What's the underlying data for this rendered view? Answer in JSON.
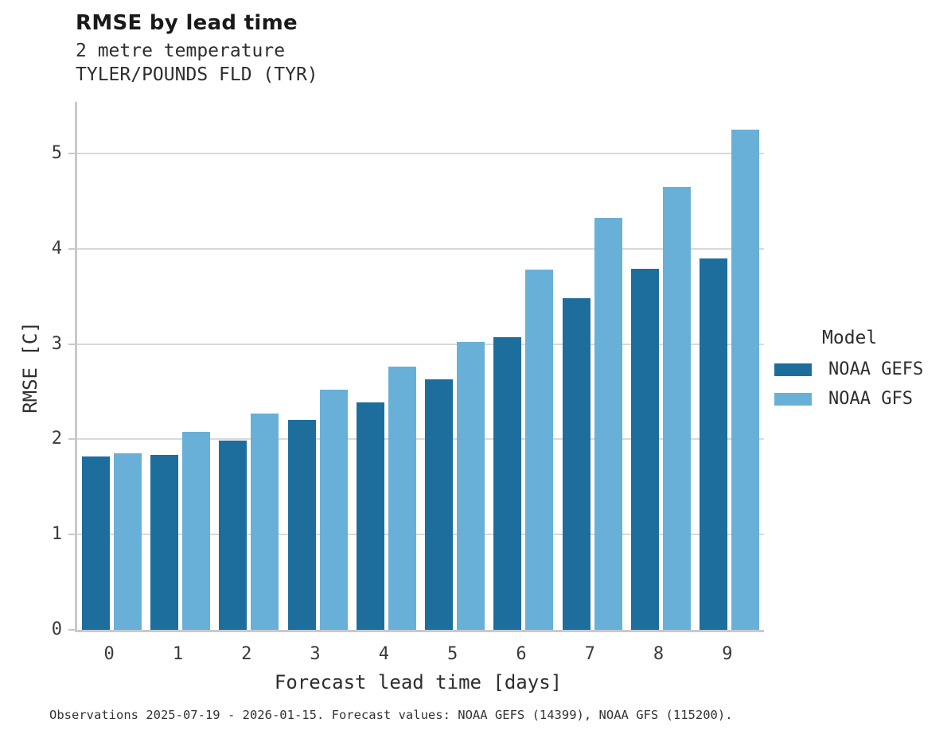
{
  "header": {
    "title": "RMSE by lead time",
    "subtitle_line1": "2 metre temperature",
    "subtitle_line2": "TYLER/POUNDS FLD (TYR)"
  },
  "chart_data": {
    "type": "bar",
    "title": "RMSE by lead time",
    "subtitle": [
      "2 metre temperature",
      "TYLER/POUNDS FLD (TYR)"
    ],
    "categories": [
      "0",
      "1",
      "2",
      "3",
      "4",
      "5",
      "6",
      "7",
      "8",
      "9"
    ],
    "series": [
      {
        "name": "NOAA GEFS",
        "color": "#1d6e9d",
        "values": [
          1.82,
          1.84,
          1.99,
          2.2,
          2.39,
          2.63,
          3.07,
          3.48,
          3.79,
          3.9
        ]
      },
      {
        "name": "NOAA GFS",
        "color": "#69b0d8",
        "values": [
          1.85,
          2.08,
          2.27,
          2.52,
          2.76,
          3.02,
          3.78,
          4.32,
          4.65,
          5.25
        ]
      }
    ],
    "xlabel": "Forecast lead time [days]",
    "ylabel": "RMSE [C]",
    "ylim": [
      0,
      5.55
    ],
    "yticks": [
      0,
      1,
      2,
      3,
      4,
      5
    ],
    "grid": "horizontal-only",
    "gridline_color": "#d9d9d9",
    "axis_spine_color": "#c9c9c9",
    "legend_title": "Model",
    "legend_position": "right-center"
  },
  "legend": {
    "title": "Model",
    "items": [
      {
        "label": "NOAA GEFS",
        "color": "#1d6e9d"
      },
      {
        "label": "NOAA GFS",
        "color": "#69b0d8"
      }
    ]
  },
  "caption": "Observations 2025-07-19 - 2026-01-15. Forecast values: NOAA GEFS (14399), NOAA GFS (115200)."
}
